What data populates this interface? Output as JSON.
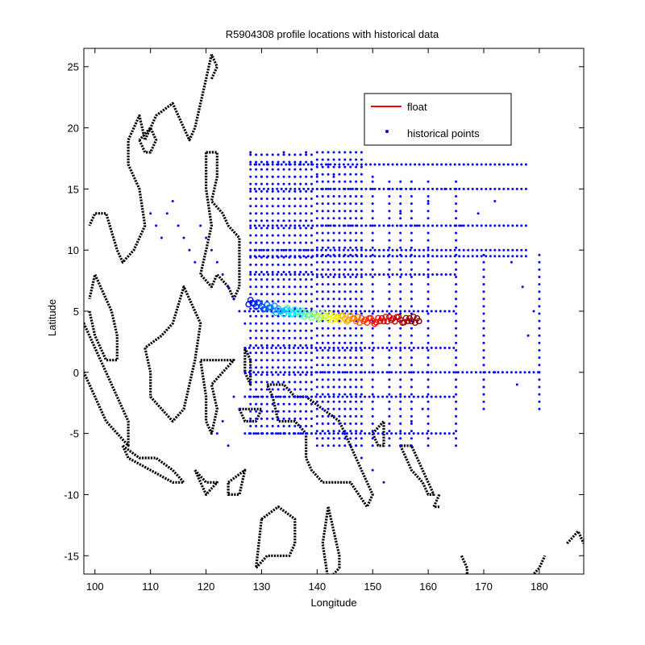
{
  "chart_data": {
    "type": "scatter",
    "title": "R5904308 profile locations with historical data",
    "xlabel": "Longitude",
    "ylabel": "Latitude",
    "xlim": [
      98,
      188
    ],
    "ylim": [
      -16.5,
      26.5
    ],
    "xticks": [
      100,
      110,
      120,
      130,
      140,
      150,
      160,
      170,
      180
    ],
    "yticks": [
      25,
      20,
      15,
      10,
      5,
      0,
      -5,
      -10,
      -15
    ],
    "grid": false,
    "legend": {
      "placement": "top-right",
      "entries": [
        {
          "label": "float",
          "marker": "line",
          "color": "#ff0000"
        },
        {
          "label": "historical points",
          "marker": "dot",
          "color": "#0000ff"
        }
      ]
    },
    "series": [
      {
        "name": "historical points",
        "color": "#0000ff",
        "grid_lines": {
          "lon_columns": [
            128,
            129,
            130,
            131,
            132,
            133,
            134,
            135,
            136,
            137,
            138,
            139,
            140,
            141,
            142,
            143,
            144,
            145,
            146,
            147,
            148,
            150,
            153,
            155,
            157,
            160,
            165,
            170,
            180
          ],
          "lat_rows": [
            17,
            15,
            12,
            10,
            9.5,
            8,
            5,
            2,
            0,
            -2,
            -5
          ]
        },
        "points": [
          [
            110,
            13
          ],
          [
            111,
            12
          ],
          [
            112,
            11
          ],
          [
            113,
            13
          ],
          [
            114,
            14
          ],
          [
            115,
            12
          ],
          [
            116,
            11
          ],
          [
            117,
            10
          ],
          [
            118,
            9
          ],
          [
            119,
            12
          ],
          [
            120,
            11
          ],
          [
            121,
            10
          ],
          [
            122,
            9
          ],
          [
            123,
            8
          ],
          [
            124,
            7
          ],
          [
            125,
            6
          ],
          [
            126,
            5
          ],
          [
            127,
            4
          ],
          [
            128,
            18
          ],
          [
            129,
            17
          ],
          [
            130,
            16
          ],
          [
            131,
            17
          ],
          [
            132,
            16
          ],
          [
            133,
            17
          ],
          [
            134,
            18
          ],
          [
            135,
            17
          ],
          [
            136,
            16
          ],
          [
            137,
            17
          ],
          [
            138,
            18
          ],
          [
            139,
            17
          ],
          [
            140,
            16
          ],
          [
            141,
            15
          ],
          [
            142,
            17
          ],
          [
            143,
            16
          ],
          [
            150,
            16
          ],
          [
            153,
            15
          ],
          [
            155,
            13
          ],
          [
            158,
            12
          ],
          [
            160,
            14
          ],
          [
            163,
            15
          ],
          [
            166,
            12
          ],
          [
            169,
            13
          ],
          [
            172,
            14
          ],
          [
            175,
            9
          ],
          [
            177,
            7
          ],
          [
            179,
            5
          ],
          [
            178,
            3
          ],
          [
            180,
            0
          ],
          [
            176,
            -1
          ],
          [
            172,
            0
          ],
          [
            145,
            -5
          ],
          [
            147,
            -6
          ],
          [
            148,
            -7
          ],
          [
            150,
            -8
          ],
          [
            152,
            -9
          ],
          [
            155,
            -6
          ],
          [
            157,
            -4
          ],
          [
            159,
            -3
          ],
          [
            125,
            -2
          ],
          [
            126,
            -3
          ],
          [
            123,
            -4
          ],
          [
            122,
            -5
          ],
          [
            124,
            -6
          ],
          [
            128,
            -4
          ],
          [
            131,
            -5
          ],
          [
            134,
            -5
          ]
        ]
      },
      {
        "name": "float",
        "color_scale": [
          "#0000ff",
          "#00ffff",
          "#ffff00",
          "#ff0000",
          "#800000"
        ],
        "points": [
          [
            128,
            5.8
          ],
          [
            129,
            5.6
          ],
          [
            130,
            5.4
          ],
          [
            131,
            5.3
          ],
          [
            132,
            5.2
          ],
          [
            133,
            5.1
          ],
          [
            134,
            5.0
          ],
          [
            135,
            5.0
          ],
          [
            136,
            4.9
          ],
          [
            137,
            4.8
          ],
          [
            138,
            4.8
          ],
          [
            139,
            4.7
          ],
          [
            140,
            4.6
          ],
          [
            141,
            4.6
          ],
          [
            142,
            4.5
          ],
          [
            143,
            4.5
          ],
          [
            144,
            4.5
          ],
          [
            145,
            4.4
          ],
          [
            146,
            4.4
          ],
          [
            147,
            4.3
          ],
          [
            148,
            4.3
          ],
          [
            149,
            4.3
          ],
          [
            150,
            4.2
          ],
          [
            151,
            4.2
          ],
          [
            152,
            4.3
          ],
          [
            153,
            4.4
          ],
          [
            154,
            4.4
          ],
          [
            155,
            4.3
          ],
          [
            156,
            4.2
          ],
          [
            157,
            4.3
          ],
          [
            158,
            4.3
          ]
        ]
      }
    ],
    "coastline_color": "#000000"
  }
}
